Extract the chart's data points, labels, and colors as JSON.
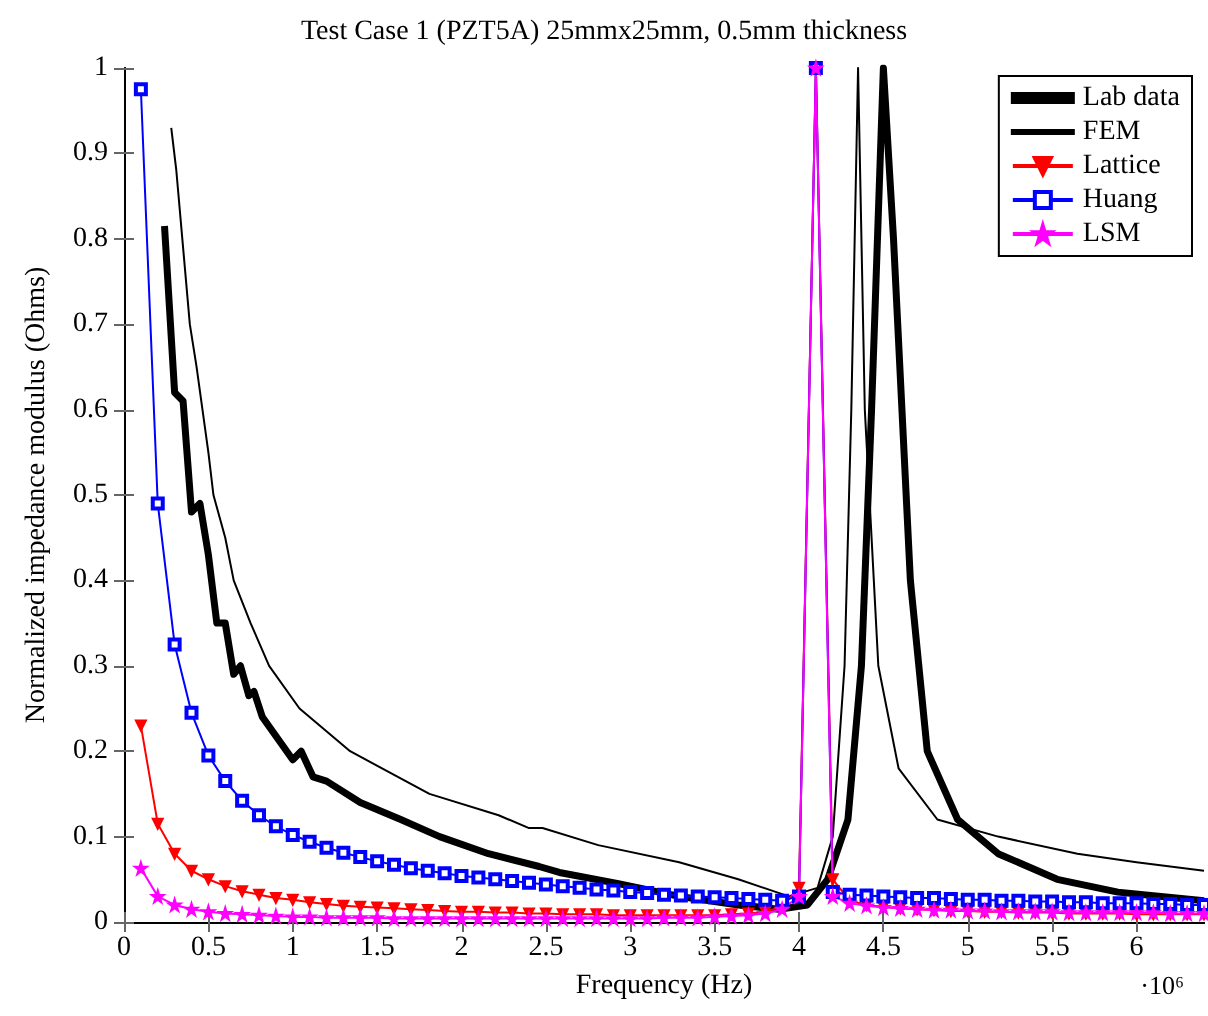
{
  "chart_data": {
    "type": "line",
    "title": "Test Case 1 (PZT5A) 25mmx25mm, 0.5mm thickness",
    "xlabel": "Frequency (Hz)",
    "ylabel": "Normalized impedance modulus (Ohms)",
    "annotations": [
      "·10⁶"
    ],
    "x": [
      0.1,
      0.2,
      0.3,
      0.4,
      0.5,
      0.6,
      0.7,
      0.8,
      0.9,
      1.0,
      1.1,
      1.2,
      1.3,
      1.4,
      1.5,
      1.6,
      1.7,
      1.8,
      1.9,
      2.0,
      2.1,
      2.2,
      2.3,
      2.4,
      2.5,
      2.6,
      2.7,
      2.8,
      2.9,
      3.0,
      3.1,
      3.2,
      3.3,
      3.4,
      3.5,
      3.6,
      3.7,
      3.8,
      3.9,
      4.0,
      4.1,
      4.2,
      4.3,
      4.4,
      4.5,
      4.6,
      4.7,
      4.8,
      4.9,
      5.0,
      5.1,
      5.2,
      5.3,
      5.4,
      5.5,
      5.6,
      5.7,
      5.8,
      5.9,
      6.0,
      6.1,
      6.2,
      6.3,
      6.4
    ],
    "series": [
      {
        "name": "Lab data",
        "color": "#000000",
        "marker": "none",
        "x": [
          0.24,
          0.3,
          0.35,
          0.4,
          0.45,
          0.5,
          0.55,
          0.6,
          0.65,
          0.69,
          0.74,
          0.77,
          0.82,
          1.0,
          1.05,
          1.12,
          1.2,
          1.4,
          1.64,
          1.87,
          2.16,
          2.46,
          2.58,
          2.93,
          3.29,
          3.64,
          3.88,
          4.05,
          4.17,
          4.29,
          4.37,
          4.43,
          4.5,
          4.56,
          4.66,
          4.76,
          4.94,
          5.18,
          5.53,
          5.89,
          6.4
        ],
        "values": [
          0.815,
          0.62,
          0.61,
          0.48,
          0.49,
          0.43,
          0.35,
          0.35,
          0.29,
          0.3,
          0.265,
          0.27,
          0.24,
          0.19,
          0.2,
          0.17,
          0.165,
          0.14,
          0.12,
          0.1,
          0.08,
          0.065,
          0.058,
          0.045,
          0.03,
          0.02,
          0.015,
          0.02,
          0.05,
          0.12,
          0.3,
          0.6,
          1.0,
          0.8,
          0.4,
          0.2,
          0.12,
          0.08,
          0.05,
          0.035,
          0.025
        ]
      },
      {
        "name": "FEM",
        "color": "#000000",
        "marker": "none",
        "x": [
          0.28,
          0.31,
          0.39,
          0.43,
          0.5,
          0.53,
          0.6,
          0.65,
          0.75,
          0.86,
          1.04,
          1.34,
          1.81,
          2.22,
          2.4,
          2.48,
          2.81,
          3.29,
          3.64,
          3.94,
          4.11,
          4.2,
          4.27,
          4.31,
          4.35,
          4.39,
          4.47,
          4.59,
          4.82,
          5.18,
          5.65,
          6.0,
          6.4
        ],
        "values": [
          0.93,
          0.88,
          0.7,
          0.65,
          0.55,
          0.5,
          0.45,
          0.4,
          0.35,
          0.3,
          0.25,
          0.2,
          0.15,
          0.125,
          0.11,
          0.11,
          0.09,
          0.07,
          0.05,
          0.03,
          0.04,
          0.1,
          0.3,
          0.6,
          1.0,
          0.6,
          0.3,
          0.18,
          0.12,
          0.1,
          0.08,
          0.07,
          0.06
        ]
      },
      {
        "name": "Lattice",
        "color": "#ff0000",
        "marker": "triangle",
        "values": [
          0.23,
          0.115,
          0.08,
          0.06,
          0.05,
          0.042,
          0.036,
          0.032,
          0.028,
          0.026,
          0.023,
          0.021,
          0.019,
          0.018,
          0.017,
          0.016,
          0.015,
          0.014,
          0.013,
          0.012,
          0.012,
          0.011,
          0.011,
          0.01,
          0.01,
          0.009,
          0.009,
          0.009,
          0.008,
          0.008,
          0.008,
          0.008,
          0.008,
          0.008,
          0.008,
          0.009,
          0.01,
          0.012,
          0.018,
          0.04,
          1.0,
          0.05,
          0.025,
          0.02,
          0.018,
          0.016,
          0.015,
          0.014,
          0.013,
          0.013,
          0.012,
          0.012,
          0.011,
          0.011,
          0.011,
          0.01,
          0.01,
          0.01,
          0.01,
          0.009,
          0.009,
          0.009,
          0.009,
          0.009
        ]
      },
      {
        "name": "Huang",
        "color": "#0000ff",
        "marker": "square",
        "values": [
          0.975,
          0.49,
          0.325,
          0.245,
          0.195,
          0.165,
          0.142,
          0.125,
          0.112,
          0.102,
          0.094,
          0.087,
          0.081,
          0.076,
          0.071,
          0.067,
          0.063,
          0.06,
          0.057,
          0.054,
          0.052,
          0.05,
          0.048,
          0.046,
          0.044,
          0.042,
          0.04,
          0.038,
          0.037,
          0.035,
          0.034,
          0.032,
          0.031,
          0.03,
          0.029,
          0.028,
          0.027,
          0.026,
          0.025,
          0.03,
          1.0,
          0.035,
          0.032,
          0.031,
          0.03,
          0.029,
          0.028,
          0.028,
          0.027,
          0.026,
          0.026,
          0.025,
          0.025,
          0.024,
          0.024,
          0.023,
          0.023,
          0.022,
          0.022,
          0.022,
          0.021,
          0.021,
          0.02,
          0.02
        ]
      },
      {
        "name": "LSM",
        "color": "#ff00ff",
        "marker": "star",
        "values": [
          0.063,
          0.03,
          0.02,
          0.015,
          0.012,
          0.01,
          0.009,
          0.008,
          0.007,
          0.006,
          0.006,
          0.005,
          0.005,
          0.005,
          0.005,
          0.004,
          0.004,
          0.004,
          0.004,
          0.004,
          0.004,
          0.004,
          0.004,
          0.004,
          0.004,
          0.004,
          0.004,
          0.004,
          0.004,
          0.004,
          0.004,
          0.005,
          0.005,
          0.005,
          0.006,
          0.007,
          0.008,
          0.01,
          0.015,
          0.03,
          1.0,
          0.03,
          0.022,
          0.019,
          0.017,
          0.016,
          0.015,
          0.014,
          0.014,
          0.013,
          0.013,
          0.012,
          0.012,
          0.012,
          0.012,
          0.011,
          0.011,
          0.011,
          0.011,
          0.011,
          0.011,
          0.01,
          0.01,
          0.01
        ]
      }
    ],
    "xlim": [
      0,
      6.4
    ],
    "xticks": [
      0,
      0.5,
      1,
      1.5,
      2,
      2.5,
      3,
      3.5,
      4,
      4.5,
      5,
      5.5,
      6
    ],
    "ylim": [
      0,
      1
    ],
    "yticks": [
      0,
      0.1,
      0.2,
      0.3,
      0.4,
      0.5,
      0.6,
      0.7,
      0.8,
      0.9,
      1
    ],
    "grid": false,
    "legend": "top right"
  }
}
